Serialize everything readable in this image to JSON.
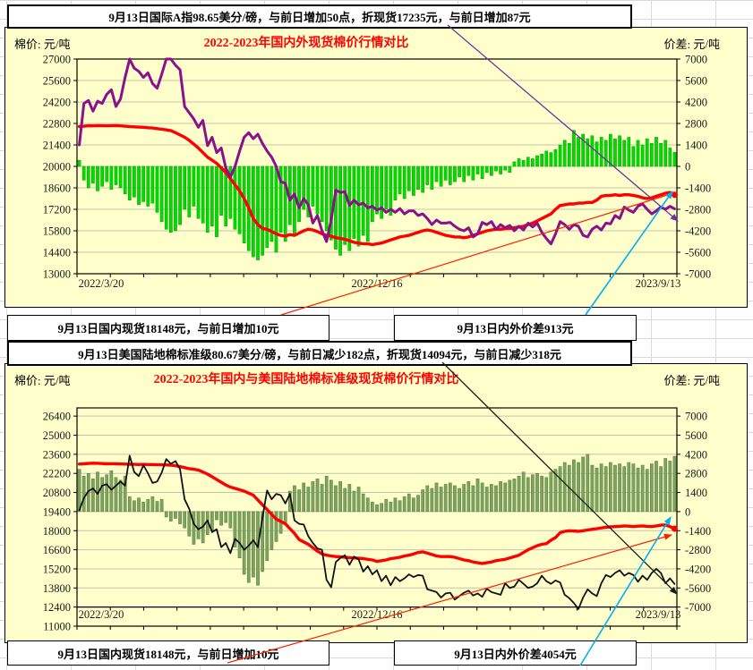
{
  "top_section": {
    "header": "9月13日国际A指98.65美分/磅，与前日增加50点，折现货17235元，与前日增加87元",
    "footer_left": "9月13日国内现货18148元，与前日增加10元",
    "footer_right": "9月13日内外价差913元"
  },
  "bottom_section": {
    "header": "9月13日美国陆地棉标准级80.67美分/磅，与前日减少182点，折现货14094元，与前日减少318元",
    "footer_left": "9月13日国内现货18148元，与前日增加10元",
    "footer_right": "9月13日内外价差4054元"
  },
  "colors": {
    "chart_bg": "#FFFFCC",
    "grid": "#c4c4ae",
    "title_red": "#FF0000",
    "leader_purple": "#7030A0",
    "leader_red": "#FF2000",
    "leader_blue": "#00B0F0",
    "leader_black": "#1a1a1a"
  },
  "chart_data": [
    {
      "type": "bar",
      "subtype": "bar+line combo, bars on right axis, lines on left axis",
      "title": "2022-2023年国内外现货棉价行情对比",
      "left_axis_label": "棉价: 元/吨",
      "right_axis_label": "价差: 元/吨",
      "x_ticks": [
        "2022/3/20",
        "2022/12/16",
        "2023/9/13"
      ],
      "left_ticks": [
        27000,
        25600,
        24200,
        22800,
        21400,
        20000,
        18600,
        17200,
        15800,
        14400,
        13000
      ],
      "right_ticks": [
        7000,
        5600,
        4200,
        2800,
        1400,
        0,
        -1400,
        -2800,
        -4200,
        -5600,
        -7000
      ],
      "left_range": [
        13000,
        27000
      ],
      "right_range": [
        -7000,
        7000
      ],
      "grid": "on",
      "legend": "none",
      "series": [
        {
          "name": "内外价差",
          "type": "bar",
          "axis": "right",
          "color": "#00DC00",
          "stroke": "#00A000",
          "values": [
            400,
            -900,
            -1400,
            -1100,
            -1600,
            -1300,
            -1000,
            -1500,
            -1200,
            -1400,
            -1800,
            -2200,
            -2000,
            -2500,
            -2300,
            -2600,
            -2400,
            -3000,
            -3600,
            -4100,
            -4300,
            -4200,
            -3800,
            -2800,
            -3300,
            -2600,
            -3400,
            -3700,
            -4300,
            -3900,
            -4600,
            -3200,
            -3900,
            -3400,
            -4100,
            -4400,
            -5000,
            -5500,
            -5900,
            -6100,
            -5800,
            -5300,
            -4900,
            -5600,
            -4300,
            -4900,
            -3800,
            -4500,
            -3600,
            -2800,
            -3300,
            -2600,
            -3100,
            -3600,
            -4200,
            -4800,
            -5400,
            -5800,
            -5100,
            -5500,
            -4700,
            -5200,
            -4500,
            -4900,
            -3600,
            -3100,
            -3400,
            -2800,
            -3200,
            -2200,
            -1800,
            -2100,
            -1600,
            -1900,
            -1500,
            -1700,
            -1200,
            -1500,
            -1000,
            -1300,
            -900,
            -1200,
            -1000,
            -700,
            -1000,
            -600,
            -900,
            -500,
            -800,
            -400,
            -600,
            -300,
            -500,
            -250,
            -400,
            300,
            500,
            400,
            600,
            500,
            700,
            800,
            1000,
            900,
            1100,
            1400,
            1700,
            1500,
            2350,
            1900,
            2100,
            1800,
            2000,
            1600,
            1900,
            1700,
            2100,
            1800,
            2000,
            1700,
            1900,
            1300,
            1700,
            1400,
            1800,
            1500,
            1900,
            1500,
            1700,
            1200,
            913
          ]
        },
        {
          "name": "国内现货",
          "type": "line",
          "axis": "left",
          "color": "#FF0000",
          "width": 3.4,
          "end_dot": true,
          "values": [
            22600,
            22620,
            22650,
            22640,
            22660,
            22650,
            22640,
            22650,
            22660,
            22640,
            22620,
            22600,
            22580,
            22560,
            22550,
            22520,
            22500,
            22460,
            22420,
            22380,
            22330,
            22200,
            22050,
            21900,
            21700,
            21450,
            21200,
            20900,
            20600,
            20400,
            20200,
            19900,
            19600,
            19200,
            18800,
            18400,
            17900,
            17300,
            16600,
            16200,
            15950,
            15900,
            15750,
            15600,
            15500,
            15450,
            15550,
            15500,
            15650,
            15800,
            15900,
            15850,
            15750,
            15600,
            15500,
            15450,
            15350,
            15300,
            15250,
            15150,
            15050,
            15000,
            14950,
            14950,
            14900,
            14950,
            15000,
            15100,
            15200,
            15300,
            15400,
            15450,
            15500,
            15600,
            15700,
            15800,
            15850,
            15800,
            15700,
            15600,
            15500,
            15450,
            15400,
            15400,
            15350,
            15400,
            15500,
            15600,
            15700,
            15800,
            15850,
            15900,
            15900,
            15950,
            15950,
            16000,
            16050,
            16100,
            16200,
            16300,
            16450,
            16600,
            16750,
            16900,
            17200,
            17450,
            17500,
            17550,
            17550,
            17600,
            17600,
            17650,
            17650,
            17800,
            18050,
            18100,
            18100,
            18150,
            18100,
            18150,
            18150,
            18100,
            18050,
            17950,
            17900,
            17950,
            18050,
            18150,
            18250,
            18300,
            18148
          ]
        },
        {
          "name": "国际A指折现货",
          "type": "line",
          "axis": "left",
          "color": "#8B108B",
          "width": 3,
          "end_dot": false,
          "values": [
            21400,
            24100,
            24300,
            23600,
            24250,
            24100,
            24700,
            25000,
            23900,
            24400,
            25800,
            27000,
            26400,
            26200,
            25800,
            26100,
            25400,
            25100,
            26000,
            27000,
            27000,
            26600,
            26300,
            23900,
            23500,
            23100,
            22550,
            23000,
            21350,
            21900,
            20900,
            21200,
            19900,
            19300,
            20000,
            21000,
            21900,
            22200,
            21800,
            22100,
            21500,
            21000,
            20600,
            20000,
            19000,
            18900,
            17800,
            18200,
            17300,
            17900,
            17500,
            16300,
            16800,
            15800,
            15100,
            16500,
            18450,
            18300,
            18350,
            17450,
            17800,
            17500,
            17600,
            17300,
            17400,
            17150,
            17300,
            17000,
            17200,
            17000,
            17250,
            16900,
            17100,
            17100,
            16800,
            16900,
            16600,
            16200,
            16500,
            16300,
            16300,
            16350,
            16100,
            15900,
            15800,
            16000,
            15400,
            15600,
            16350,
            16200,
            16400,
            15900,
            16200,
            16000,
            16150,
            15800,
            16100,
            15850,
            16300,
            16050,
            16300,
            15700,
            15300,
            14950,
            15600,
            16400,
            16200,
            15900,
            16200,
            16100,
            15500,
            15400,
            15900,
            16100,
            15850,
            16300,
            16250,
            16800,
            16600,
            17350,
            17150,
            17000,
            17400,
            17550,
            17200,
            16900,
            17100,
            17350,
            17200,
            17400,
            17235
          ]
        }
      ]
    },
    {
      "type": "bar",
      "subtype": "bar+line combo, bars on right axis, lines on left axis",
      "title": "2022-2023年国内与美国陆地棉标准级现货棉价行情对比",
      "left_axis_label": "棉价: 元/吨",
      "right_axis_label": "价差: 元/吨",
      "x_ticks": [
        "2022/3/20",
        "2022/12/16",
        "2023/9/13"
      ],
      "left_ticks": [
        26400,
        25000,
        23600,
        22200,
        20800,
        19400,
        18000,
        16600,
        15200,
        13800,
        12400,
        11000
      ],
      "right_ticks": [
        7000,
        5600,
        4200,
        2800,
        1400,
        0,
        -1400,
        -2800,
        -4200,
        -5600,
        -7000
      ],
      "left_range": [
        11000,
        27000
      ],
      "right_range": [
        -8400,
        7600
      ],
      "grid": "on",
      "legend": "none",
      "series": [
        {
          "name": "内外价差",
          "type": "bar",
          "axis": "right",
          "color": "#7CA45E",
          "stroke": "#567A3C",
          "values": [
            3100,
            2600,
            2800,
            2400,
            2900,
            2500,
            2700,
            3000,
            2500,
            2300,
            2600,
            1100,
            800,
            1000,
            700,
            900,
            1100,
            750,
            900,
            -400,
            -700,
            -500,
            -900,
            -1200,
            -1800,
            -2400,
            -2000,
            -2300,
            -1700,
            -1400,
            -600,
            -1000,
            -800,
            -1200,
            -2600,
            -3400,
            -4600,
            -5200,
            -4800,
            -5400,
            -4400,
            -3600,
            -2800,
            -2200,
            -1600,
            -800,
            1500,
            1900,
            1600,
            2100,
            1800,
            2200,
            2400,
            2000,
            2600,
            2300,
            1900,
            2200,
            1700,
            2000,
            1500,
            1800,
            1300,
            1000,
            700,
            500,
            600,
            900,
            700,
            1000,
            800,
            1100,
            1300,
            1000,
            1200,
            1600,
            1900,
            1700,
            2100,
            1800,
            2000,
            2100,
            1900,
            1700,
            2000,
            2200,
            1900,
            2400,
            2100,
            1800,
            2000,
            1900,
            2200,
            2100,
            2300,
            2400,
            2600,
            2900,
            2500,
            2700,
            2800,
            2600,
            2500,
            2900,
            3100,
            3300,
            3600,
            3400,
            3800,
            3600,
            4000,
            4200,
            3400,
            3200,
            3500,
            3300,
            3600,
            3400,
            3500,
            3300,
            3600,
            3500,
            3200,
            3400,
            3100,
            3500,
            3700,
            3300,
            3900,
            3700,
            4054
          ]
        },
        {
          "name": "国内现货",
          "type": "line",
          "axis": "left",
          "color": "#FF0000",
          "width": 3.4,
          "end_dot": true,
          "values": [
            22880,
            22900,
            22930,
            22950,
            22940,
            22920,
            22900,
            22910,
            22900,
            22890,
            22880,
            22870,
            22860,
            22850,
            22860,
            22850,
            22850,
            22840,
            22830,
            22820,
            22800,
            22760,
            22700,
            22620,
            22550,
            22500,
            22450,
            22300,
            22150,
            21950,
            21750,
            21550,
            21350,
            21200,
            21100,
            21000,
            20900,
            20750,
            20600,
            20250,
            19900,
            19550,
            19200,
            18850,
            18680,
            18500,
            18150,
            17800,
            17350,
            17180,
            17000,
            16750,
            16500,
            16300,
            16200,
            16150,
            16100,
            16080,
            16050,
            16020,
            16000,
            15980,
            15950,
            15900,
            15850,
            15750,
            15800,
            15850,
            15950,
            16000,
            16050,
            16150,
            16200,
            16300,
            16400,
            16450,
            16350,
            16250,
            16150,
            16100,
            16100,
            16100,
            16050,
            15950,
            15850,
            15800,
            15700,
            15650,
            15600,
            15650,
            15700,
            15800,
            15850,
            15900,
            16000,
            16100,
            16200,
            16400,
            16600,
            16750,
            16900,
            17000,
            17050,
            17300,
            17500,
            17850,
            17950,
            18000,
            17980,
            17950,
            18000,
            18050,
            18100,
            18150,
            18200,
            18250,
            18280,
            18300,
            18320,
            18350,
            18330,
            18300,
            18330,
            18350,
            18320,
            18300,
            18350,
            18400,
            18420,
            18300,
            18148
          ]
        },
        {
          "name": "美国陆地棉标准级折现货",
          "type": "line",
          "axis": "left",
          "color": "#111111",
          "width": 1.8,
          "end_dot": false,
          "values": [
            19500,
            20400,
            20900,
            21100,
            20700,
            21300,
            21400,
            21000,
            21300,
            21600,
            21300,
            23500,
            22300,
            22000,
            22800,
            22200,
            21500,
            21600,
            22250,
            23250,
            22900,
            23100,
            22500,
            20300,
            19600,
            18500,
            18100,
            18300,
            18750,
            17900,
            18100,
            16800,
            17100,
            16350,
            17400,
            17100,
            16600,
            16900,
            17300,
            16800,
            18950,
            20950,
            20300,
            20700,
            20600,
            20000,
            20700,
            18750,
            18500,
            18450,
            17600,
            17100,
            16700,
            16600,
            14400,
            13850,
            15700,
            16000,
            16200,
            15500,
            16100,
            15900,
            15000,
            15400,
            14800,
            15100,
            14300,
            14700,
            14000,
            14600,
            14300,
            14500,
            14800,
            14600,
            14750,
            14700,
            13700,
            13600,
            13500,
            13100,
            13400,
            13450,
            12950,
            13200,
            13450,
            13600,
            13250,
            13400,
            13150,
            13750,
            13500,
            13400,
            13300,
            14150,
            13800,
            13900,
            14400,
            14100,
            13800,
            13900,
            14150,
            14700,
            14300,
            14100,
            14350,
            14200,
            13300,
            13050,
            12700,
            12250,
            13100,
            13700,
            13400,
            13200,
            14150,
            14750,
            14600,
            14900,
            15100,
            14700,
            14900,
            14750,
            14250,
            14700,
            14400,
            14900,
            15200,
            14900,
            14150,
            14500,
            14094
          ]
        }
      ]
    }
  ]
}
